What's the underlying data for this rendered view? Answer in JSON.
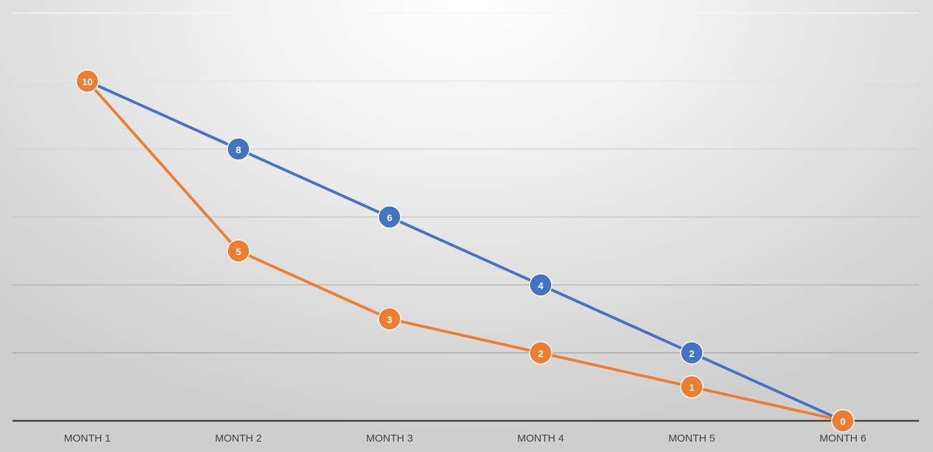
{
  "chart_data": {
    "type": "line",
    "categories": [
      "MONTH 1",
      "MONTH 2",
      "MONTH 3",
      "MONTH 4",
      "MONTH 5",
      "MONTH 6"
    ],
    "series": [
      {
        "values": [
          10,
          8,
          6,
          4,
          2,
          0
        ],
        "color": "#4472C4"
      },
      {
        "values": [
          10,
          5,
          3,
          2,
          1,
          0
        ],
        "color": "#ED7D31"
      }
    ],
    "ylim": [
      0,
      12
    ],
    "grid": true,
    "data_labels": true,
    "title": "",
    "xlabel": "",
    "ylabel": ""
  }
}
